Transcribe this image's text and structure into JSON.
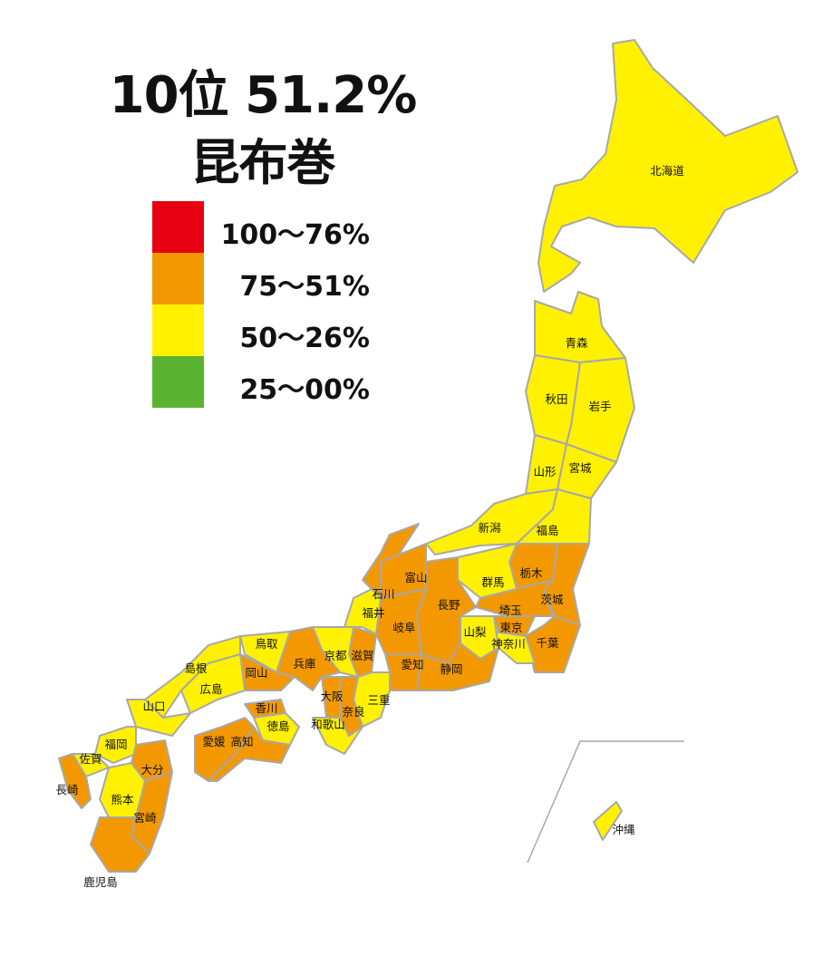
{
  "title": {
    "rank_line": "10位 51.2%",
    "item": "昆布巻"
  },
  "legend": [
    {
      "label": "100〜76%",
      "category": "red",
      "color": "#e60012"
    },
    {
      "label": "75〜51%",
      "category": "orange",
      "color": "#f39800"
    },
    {
      "label": "50〜26%",
      "category": "yellow",
      "color": "#fff100"
    },
    {
      "label": "25〜00%",
      "category": "green",
      "color": "#5bb431"
    }
  ],
  "border_color": "#a8a8a8",
  "prefectures": [
    {
      "name": "北海道",
      "category": "yellow"
    },
    {
      "name": "青森",
      "category": "yellow"
    },
    {
      "name": "秋田",
      "category": "yellow"
    },
    {
      "name": "岩手",
      "category": "yellow"
    },
    {
      "name": "山形",
      "category": "yellow"
    },
    {
      "name": "宮城",
      "category": "yellow"
    },
    {
      "name": "新潟",
      "category": "yellow"
    },
    {
      "name": "福島",
      "category": "yellow"
    },
    {
      "name": "栃木",
      "category": "orange"
    },
    {
      "name": "群馬",
      "category": "yellow"
    },
    {
      "name": "茨城",
      "category": "orange"
    },
    {
      "name": "埼玉",
      "category": "orange"
    },
    {
      "name": "千葉",
      "category": "orange"
    },
    {
      "name": "東京",
      "category": "orange"
    },
    {
      "name": "神奈川",
      "category": "yellow"
    },
    {
      "name": "山梨",
      "category": "yellow"
    },
    {
      "name": "長野",
      "category": "orange"
    },
    {
      "name": "静岡",
      "category": "orange"
    },
    {
      "name": "愛知",
      "category": "orange"
    },
    {
      "name": "岐阜",
      "category": "orange"
    },
    {
      "name": "富山",
      "category": "orange"
    },
    {
      "name": "石川",
      "category": "orange"
    },
    {
      "name": "福井",
      "category": "yellow"
    },
    {
      "name": "滋賀",
      "category": "orange"
    },
    {
      "name": "京都",
      "category": "yellow"
    },
    {
      "name": "三重",
      "category": "yellow"
    },
    {
      "name": "奈良",
      "category": "orange"
    },
    {
      "name": "大阪",
      "category": "orange"
    },
    {
      "name": "和歌山",
      "category": "yellow"
    },
    {
      "name": "兵庫",
      "category": "orange"
    },
    {
      "name": "鳥取",
      "category": "yellow"
    },
    {
      "name": "岡山",
      "category": "orange"
    },
    {
      "name": "島根",
      "category": "yellow"
    },
    {
      "name": "広島",
      "category": "yellow"
    },
    {
      "name": "山口",
      "category": "yellow"
    },
    {
      "name": "香川",
      "category": "orange"
    },
    {
      "name": "徳島",
      "category": "yellow"
    },
    {
      "name": "愛媛",
      "category": "orange"
    },
    {
      "name": "高知",
      "category": "orange"
    },
    {
      "name": "福岡",
      "category": "yellow"
    },
    {
      "name": "佐賀",
      "category": "yellow"
    },
    {
      "name": "長崎",
      "category": "orange"
    },
    {
      "name": "大分",
      "category": "orange"
    },
    {
      "name": "熊本",
      "category": "yellow"
    },
    {
      "name": "宮崎",
      "category": "orange"
    },
    {
      "name": "鹿児島",
      "category": "orange"
    },
    {
      "name": "沖縄",
      "category": "yellow"
    }
  ]
}
